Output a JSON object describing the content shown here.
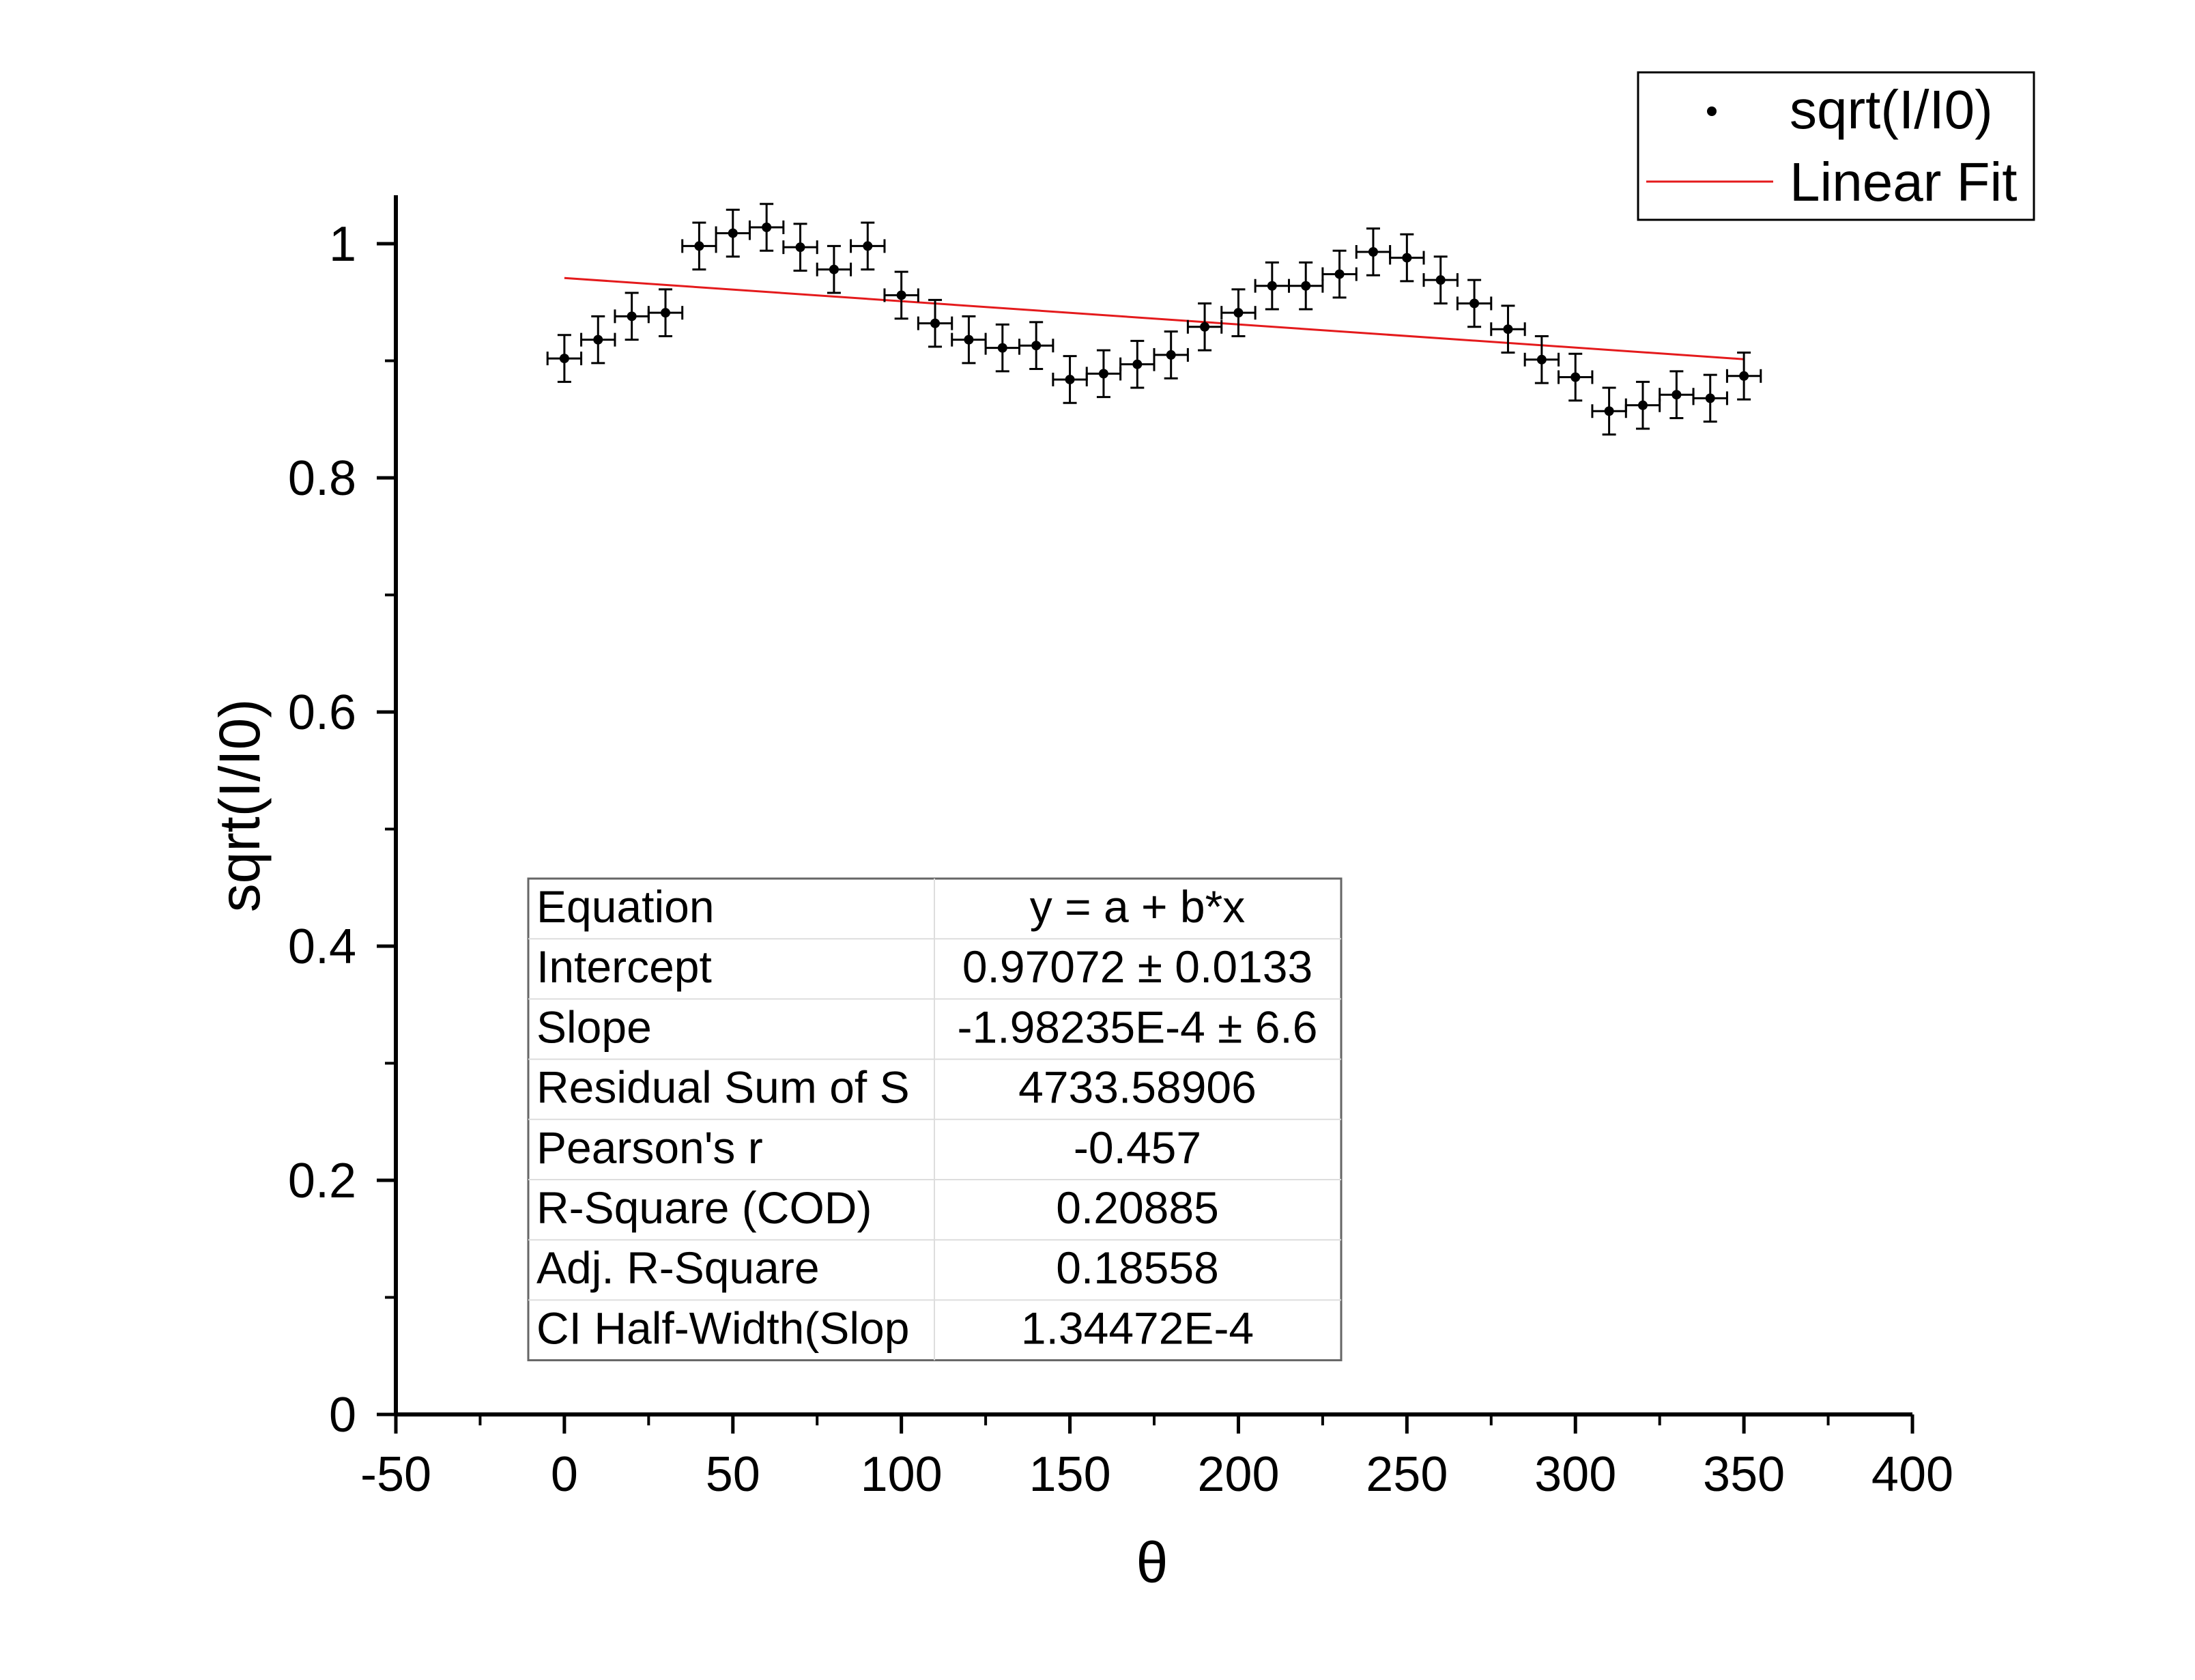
{
  "chart_data": {
    "type": "scatter",
    "xlabel": "θ",
    "ylabel": "sqrt(I/I0)",
    "xlim": [
      -50,
      400
    ],
    "ylim": [
      0,
      1.05
    ],
    "x_ticks": [
      "-50",
      "0",
      "50",
      "100",
      "150",
      "200",
      "250",
      "300",
      "350",
      "400"
    ],
    "y_ticks": [
      "0",
      "0.2",
      "0.4",
      "0.6",
      "0.8",
      "1"
    ],
    "grid": false,
    "legend_position": "top-right",
    "colors": {
      "points": "#000000",
      "fit": "#e41a1c"
    },
    "series": [
      {
        "name": "sqrt(I/I0)",
        "kind": "scatter-with-errorbars",
        "x": [
          0,
          10,
          20,
          30,
          40,
          50,
          60,
          70,
          80,
          90,
          100,
          110,
          120,
          130,
          140,
          150,
          160,
          170,
          180,
          190,
          200,
          210,
          220,
          230,
          240,
          250,
          260,
          270,
          280,
          290,
          300,
          310,
          320,
          330,
          340,
          350
        ],
        "y": [
          0.902,
          0.918,
          0.938,
          0.941,
          0.998,
          1.009,
          1.014,
          0.997,
          0.978,
          0.998,
          0.956,
          0.932,
          0.918,
          0.911,
          0.913,
          0.884,
          0.889,
          0.897,
          0.905,
          0.929,
          0.941,
          0.964,
          0.964,
          0.974,
          0.993,
          0.988,
          0.969,
          0.949,
          0.927,
          0.901,
          0.886,
          0.857,
          0.862,
          0.871,
          0.868,
          0.887
        ],
        "x_error": 5,
        "y_error": 0.02
      },
      {
        "name": "Linear Fit",
        "kind": "line",
        "x": [
          0,
          350
        ],
        "y": [
          0.97072,
          0.90134
        ]
      }
    ],
    "fit_table": {
      "rows": [
        [
          "Equation",
          "y = a + b*x"
        ],
        [
          "Intercept",
          "0.97072 ± 0.0133"
        ],
        [
          "Slope",
          "-1.98235E-4 ± 6.6"
        ],
        [
          "Residual Sum of S",
          "4733.58906"
        ],
        [
          "Pearson's r",
          "-0.457"
        ],
        [
          "R-Square (COD)",
          "0.20885"
        ],
        [
          "Adj. R-Square",
          "0.18558"
        ],
        [
          "CI Half-Width(Slop",
          "1.34472E-4"
        ]
      ]
    }
  }
}
